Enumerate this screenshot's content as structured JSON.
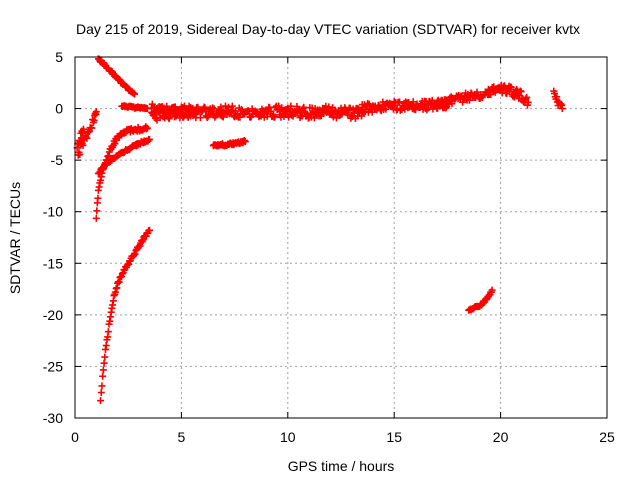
{
  "chart_data": {
    "type": "scatter",
    "title": "Day 215 of 2019, Sidereal Day-to-day VTEC variation (SDTVAR) for receiver kvtx",
    "xlabel": "GPS time / hours",
    "ylabel": "SDTVAR / TECUs",
    "xlim": [
      0,
      25
    ],
    "ylim": [
      -30,
      5
    ],
    "xticks": [
      0,
      5,
      10,
      15,
      20,
      25
    ],
    "yticks": [
      5,
      0,
      -5,
      -10,
      -15,
      -20,
      -25,
      -30
    ],
    "grid": true,
    "marker": "+",
    "color": "#ff0000",
    "segments": [
      {
        "x": [
          0.15,
          0.3,
          0.45,
          0.6,
          0.75,
          0.9,
          1.0
        ],
        "y": [
          -4.5,
          -3.7,
          -3.0,
          -2.4,
          -1.8,
          -1.0,
          -0.3
        ],
        "jitter": 0.7
      },
      {
        "x": [
          0.1,
          0.2,
          0.3,
          0.4
        ],
        "y": [
          -3.8,
          -3.2,
          -2.5,
          -2.0
        ],
        "jitter": 0.8
      },
      {
        "x": [
          1.1,
          1.3,
          1.6,
          2.0,
          2.3,
          2.6,
          2.8
        ],
        "y": [
          4.8,
          4.4,
          3.8,
          2.9,
          2.3,
          1.7,
          1.4
        ],
        "jitter": 0.2
      },
      {
        "x": [
          1.0,
          1.1,
          1.3,
          1.5,
          1.8,
          2.1,
          2.5,
          3.0,
          3.4
        ],
        "y": [
          -10.5,
          -8.0,
          -6.0,
          -4.8,
          -3.4,
          -2.6,
          -2.1,
          -2.0,
          -1.9
        ],
        "jitter": 0.4
      },
      {
        "x": [
          1.1,
          1.4,
          1.8,
          2.2,
          2.6,
          3.0,
          3.5
        ],
        "y": [
          -6.3,
          -5.5,
          -4.8,
          -4.3,
          -3.8,
          -3.4,
          -3.0
        ],
        "jitter": 0.25
      },
      {
        "x": [
          2.2,
          2.5,
          2.8,
          3.1,
          3.4
        ],
        "y": [
          0.2,
          0.2,
          0.1,
          0.1,
          0.0
        ],
        "jitter": 0.15
      },
      {
        "x": [
          1.2,
          1.4,
          1.6,
          1.8,
          2.0,
          2.3,
          2.6,
          2.9,
          3.2,
          3.5
        ],
        "y": [
          -28.2,
          -24.0,
          -21.0,
          -18.5,
          -17.0,
          -15.7,
          -14.7,
          -13.7,
          -12.7,
          -11.8
        ],
        "jitter": 0.3
      },
      {
        "x": [
          3.6,
          4.0,
          5.0,
          6.0,
          7.0,
          8.0,
          9.0,
          10.0,
          11.0,
          12.0,
          13.0,
          13.5
        ],
        "y": [
          -0.8,
          -0.5,
          -0.4,
          -0.4,
          -0.3,
          -0.3,
          -0.3,
          -0.3,
          -0.4,
          -0.3,
          -0.5,
          -0.3
        ],
        "jitter": 1.1
      },
      {
        "x": [
          3.6,
          4.2,
          5.0,
          5.8
        ],
        "y": [
          0.0,
          -0.2,
          -0.1,
          -0.3
        ],
        "jitter": 0.9
      },
      {
        "x": [
          6.5,
          7.0,
          7.5,
          8.0
        ],
        "y": [
          -3.6,
          -3.5,
          -3.4,
          -3.2
        ],
        "jitter": 0.25
      },
      {
        "x": [
          13.5,
          14.0,
          15.0,
          16.0,
          17.0,
          17.5
        ],
        "y": [
          0.0,
          0.1,
          0.3,
          0.2,
          0.4,
          0.5
        ],
        "jitter": 0.9
      },
      {
        "x": [
          17.0,
          17.5,
          18.0,
          18.5,
          19.0,
          19.5,
          20.0,
          20.5,
          21.0,
          21.3
        ],
        "y": [
          0.4,
          0.8,
          0.9,
          1.2,
          1.4,
          1.7,
          2.0,
          1.7,
          1.2,
          0.6
        ],
        "jitter": 0.9
      },
      {
        "x": [
          22.5,
          22.7,
          22.9
        ],
        "y": [
          1.8,
          0.5,
          0.0
        ],
        "jitter": 0.6
      },
      {
        "x": [
          18.5,
          18.8,
          19.1,
          19.4,
          19.6
        ],
        "y": [
          -19.5,
          -19.3,
          -19.0,
          -18.3,
          -17.6
        ],
        "jitter": 0.2
      }
    ]
  }
}
